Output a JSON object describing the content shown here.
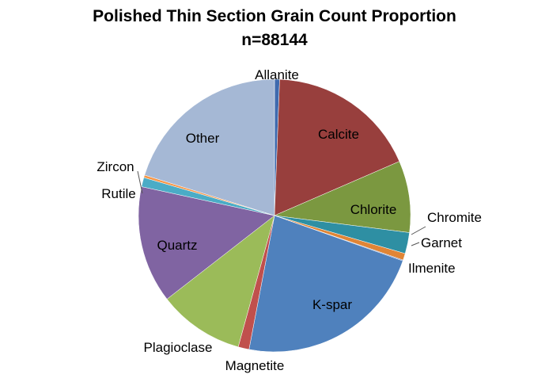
{
  "chart_data": {
    "type": "pie",
    "title": "Polished Thin Section Grain Count Proportion",
    "subtitle": "n=88144",
    "start_angle_deg": 0,
    "direction": "clockwise",
    "legend": "none",
    "slices": [
      {
        "label": "Allanite",
        "value": 0.6,
        "color": "#3F6AAE"
      },
      {
        "label": "Calcite",
        "value": 17.9,
        "color": "#983F3D"
      },
      {
        "label": "Chlorite",
        "value": 8.5,
        "color": "#7B9840"
      },
      {
        "label": "Chromite",
        "value": 2.5,
        "color": "#2E8FA3"
      },
      {
        "label": "Garnet",
        "value": 0.8,
        "color": "#E08536"
      },
      {
        "label": "Ilmenite",
        "value": 0.1,
        "color": "#5B7DBF"
      },
      {
        "label": "K-spar",
        "value": 22.6,
        "color": "#4F81BD"
      },
      {
        "label": "Magnetite",
        "value": 1.3,
        "color": "#C0504D"
      },
      {
        "label": "Plagioclase",
        "value": 10.2,
        "color": "#9BBB59"
      },
      {
        "label": "Quartz",
        "value": 13.9,
        "color": "#8064A2"
      },
      {
        "label": "Rutile",
        "value": 1.1,
        "color": "#4BACC6"
      },
      {
        "label": "Zircon",
        "value": 0.3,
        "color": "#F79646"
      },
      {
        "label": "Other",
        "value": 20.2,
        "color": "#A5B8D5"
      }
    ]
  }
}
